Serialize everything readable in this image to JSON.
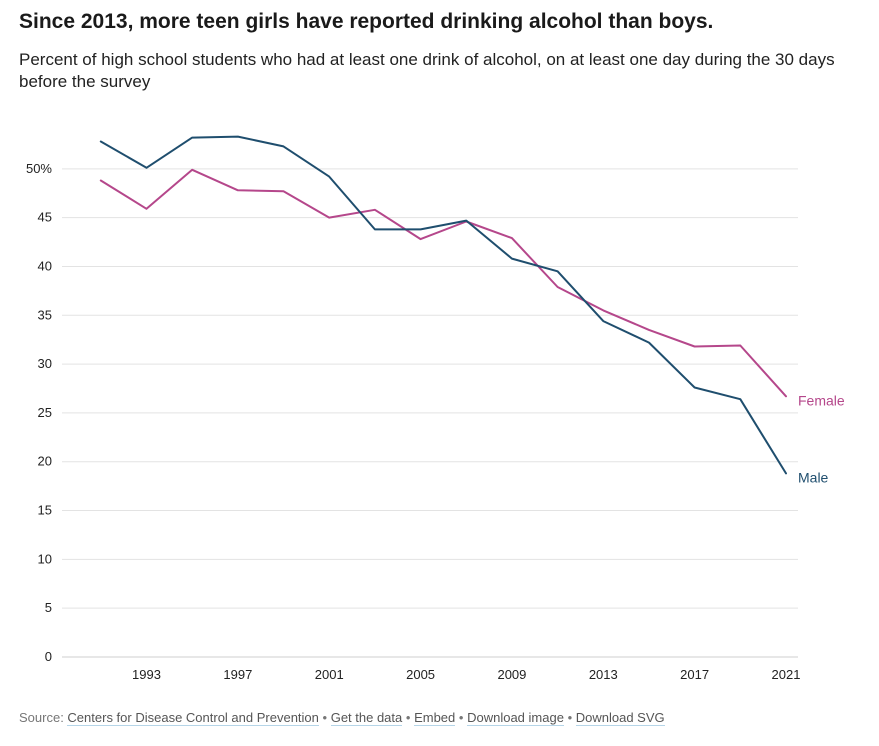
{
  "chart_data": {
    "type": "line",
    "title": "Since 2013, more teen girls have reported drinking alcohol than boys.",
    "subtitle": "Percent of high school students who had at least one drink of alcohol, on at least one day during the 30 days before the survey",
    "xlabel": "",
    "ylabel": "",
    "x": [
      1991,
      1993,
      1995,
      1997,
      1999,
      2001,
      2003,
      2005,
      2007,
      2009,
      2011,
      2013,
      2015,
      2017,
      2019,
      2021
    ],
    "xlim": [
      1989.3,
      2021
    ],
    "ylim": [
      0,
      55
    ],
    "x_ticks": [
      "1993",
      "1997",
      "2001",
      "2005",
      "2009",
      "2013",
      "2017",
      "2021"
    ],
    "y_ticks": [
      {
        "value": 0,
        "label": "0"
      },
      {
        "value": 5,
        "label": "5"
      },
      {
        "value": 10,
        "label": "10"
      },
      {
        "value": 15,
        "label": "15"
      },
      {
        "value": 20,
        "label": "20"
      },
      {
        "value": 25,
        "label": "25"
      },
      {
        "value": 30,
        "label": "30"
      },
      {
        "value": 35,
        "label": "35"
      },
      {
        "value": 40,
        "label": "40"
      },
      {
        "value": 45,
        "label": "45"
      },
      {
        "value": 50,
        "label": "50%"
      }
    ],
    "grid": true,
    "legend": "direct labels at line ends (right)",
    "series": [
      {
        "name": "Male",
        "color": "#1f4e6e",
        "values": [
          52.8,
          50.1,
          53.2,
          53.3,
          52.3,
          49.2,
          43.8,
          43.8,
          44.7,
          40.8,
          39.5,
          34.4,
          32.2,
          27.6,
          26.4,
          18.8
        ]
      },
      {
        "name": "Female",
        "color": "#b5478b",
        "values": [
          48.8,
          45.9,
          49.9,
          47.8,
          47.7,
          45.0,
          45.8,
          42.8,
          44.6,
          42.9,
          37.9,
          35.5,
          33.5,
          31.8,
          31.9,
          26.7
        ]
      }
    ]
  },
  "source": {
    "prefix": "Source: ",
    "link_text": "Centers for Disease Control and Prevention",
    "separator": "•",
    "get_data": "Get the data",
    "embed": "Embed",
    "download_image": "Download image",
    "download_svg": "Download SVG"
  }
}
